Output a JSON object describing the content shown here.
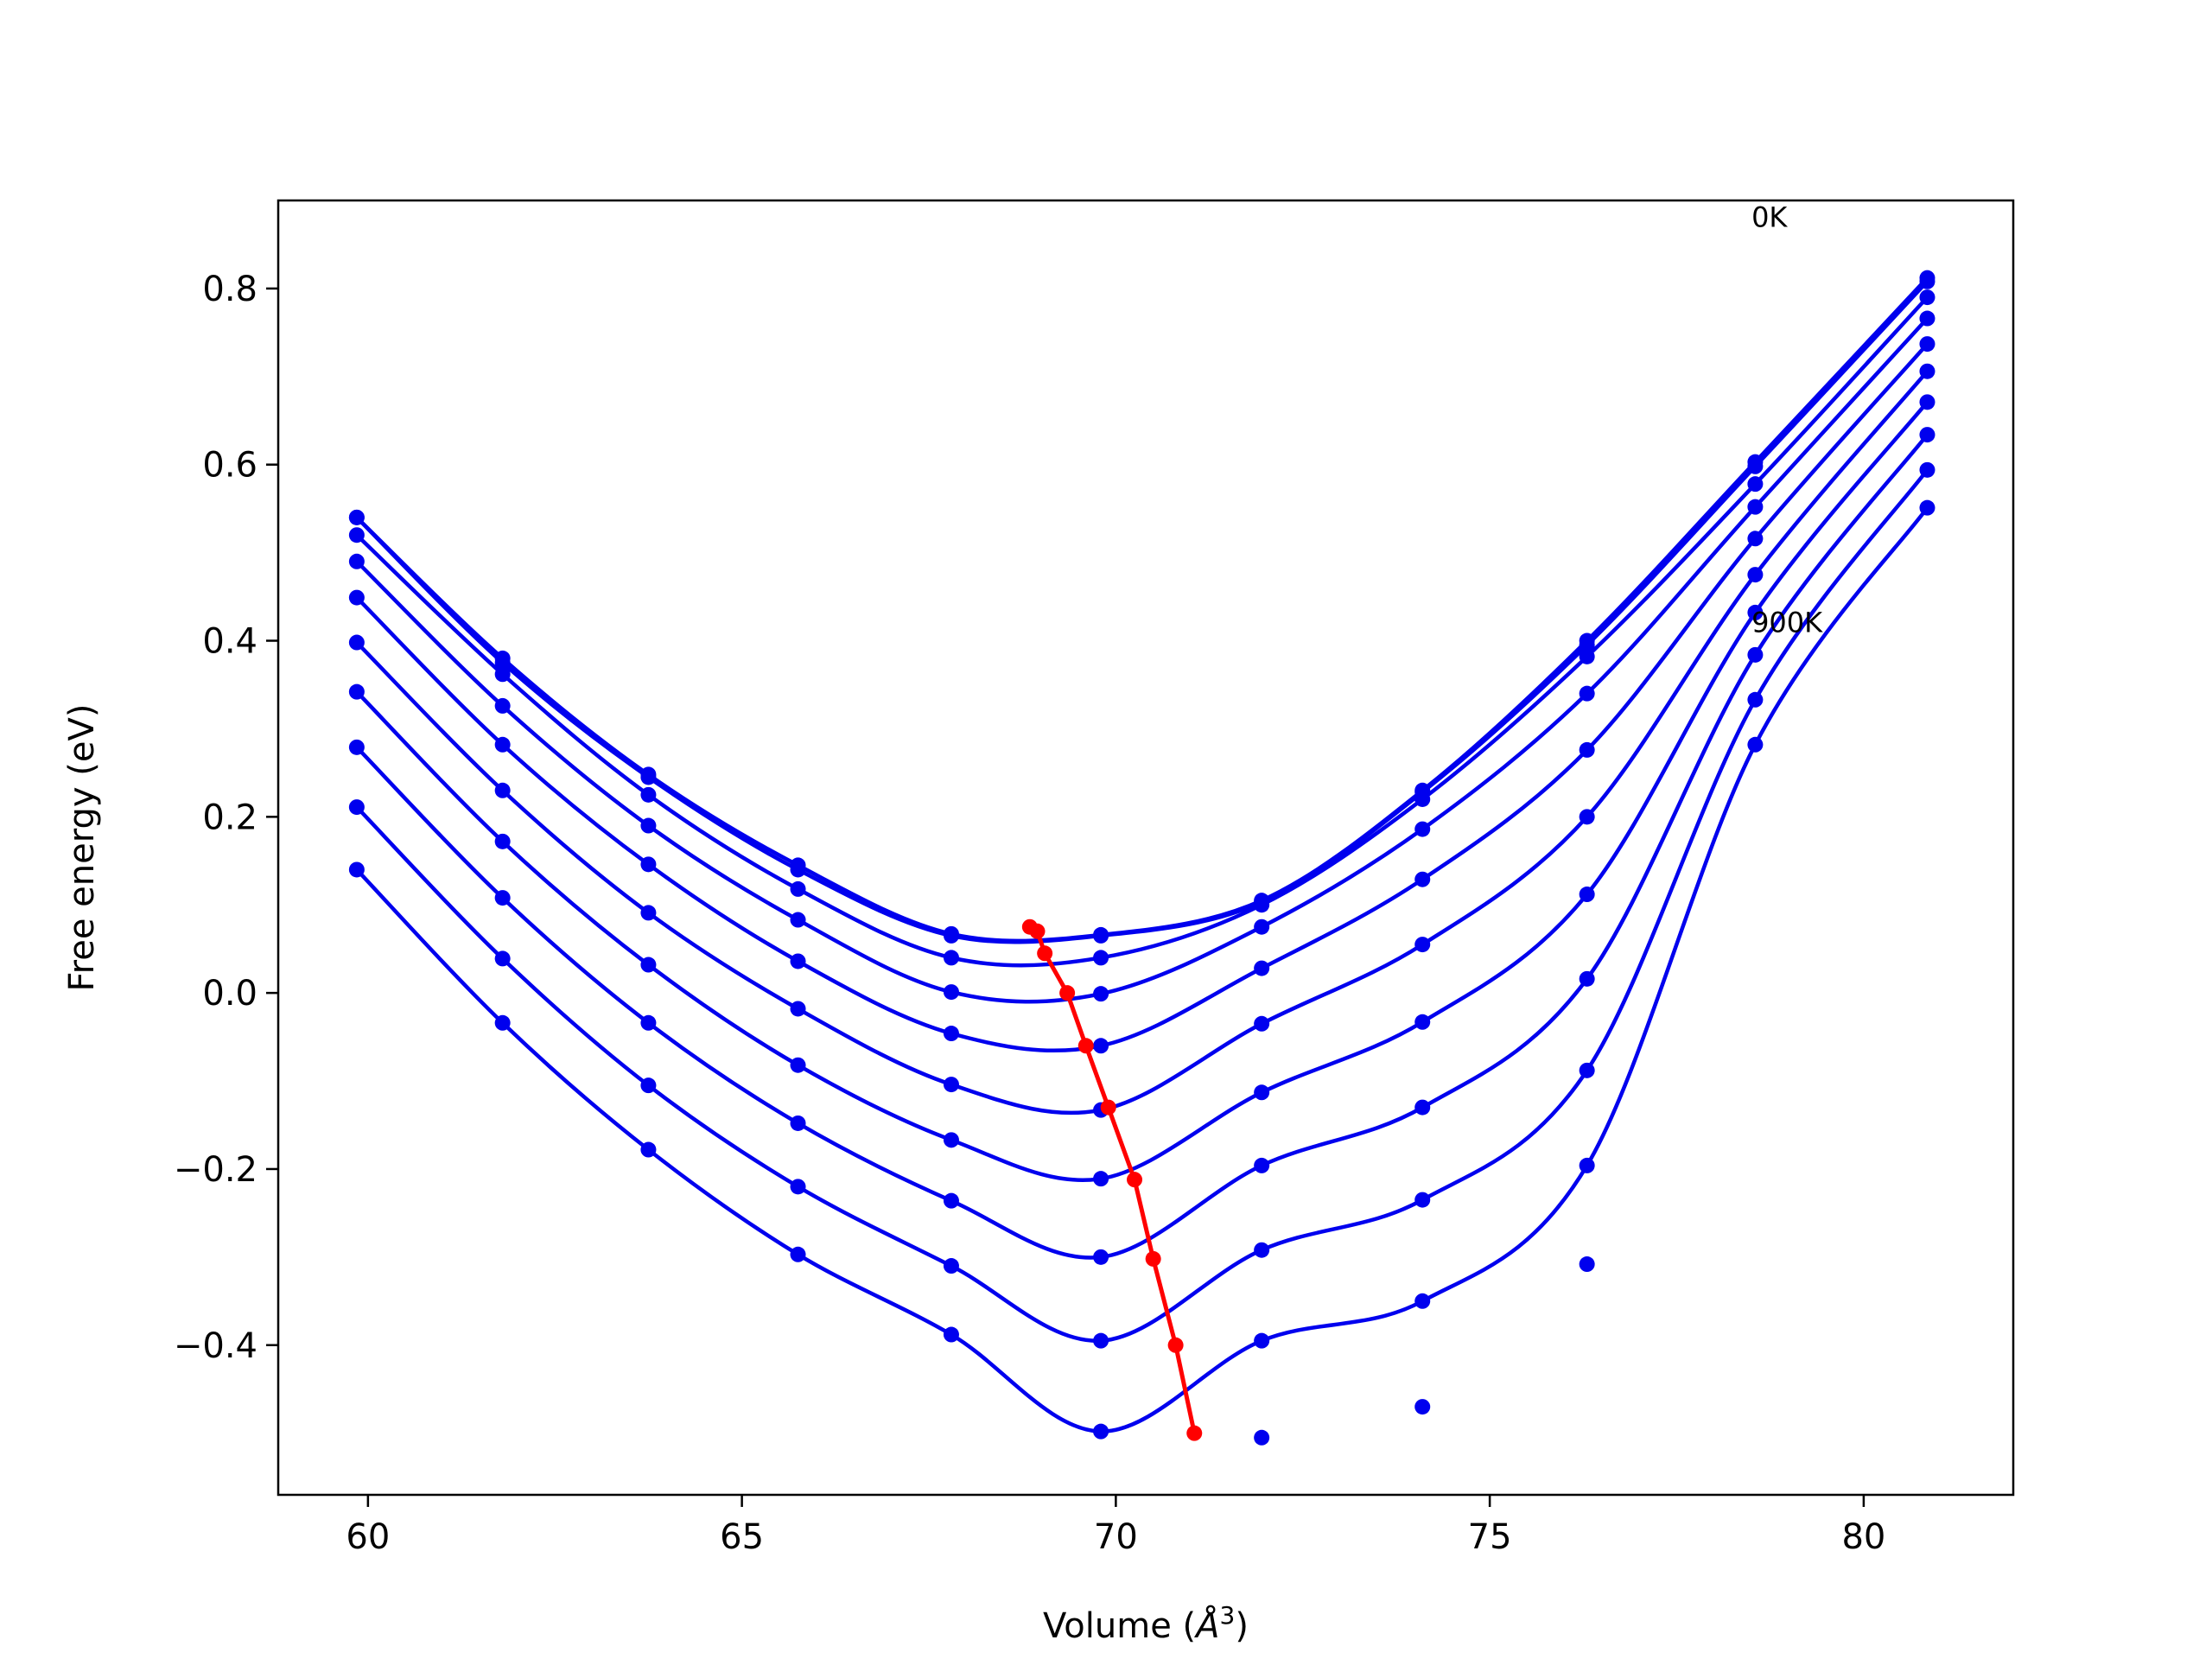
{
  "chart_data": {
    "type": "scatter",
    "xlabel": "Volume (",
    "xlabel_unit": "Å",
    "xlabel_exp": "3",
    "xlabel_close": ")",
    "ylabel": "Free energy (eV)",
    "xlim": [
      58.8,
      82.0
    ],
    "ylim": [
      -0.57,
      0.9
    ],
    "xticks": [
      60,
      65,
      70,
      75,
      80
    ],
    "yticks": [
      -0.4,
      -0.2,
      0.0,
      0.2,
      0.4,
      0.6,
      0.8
    ],
    "ytick_labels": [
      "−0.4",
      "−0.2",
      "0.0",
      "0.2",
      "0.4",
      "0.6",
      "0.8"
    ],
    "grid": false,
    "legend": "none",
    "annotations": [
      {
        "text": "0K",
        "x": 78.5,
        "y": 0.87
      },
      {
        "text": "900K",
        "x": 78.5,
        "y": 0.41
      }
    ],
    "colors": {
      "fit_curves": "#0000ee",
      "points": "#0000ee",
      "minimum_line": "#ff0000"
    },
    "volumes": [
      59.85,
      61.8,
      63.75,
      65.75,
      67.8,
      69.8,
      71.95,
      74.1,
      76.3,
      78.55,
      80.85
    ],
    "series": [
      {
        "values": [
          0.54,
          0.38,
          0.248,
          0.145,
          0.067,
          0.066,
          0.105,
          0.23,
          0.4,
          0.603,
          0.812
        ]
      },
      {
        "values": [
          0.54,
          0.375,
          0.245,
          0.14,
          0.065,
          0.065,
          0.103,
          0.228,
          0.395,
          0.598,
          0.808
        ]
      },
      {
        "values": [
          0.52,
          0.362,
          0.225,
          0.118,
          0.04,
          0.04,
          0.1,
          0.22,
          0.382,
          0.578,
          0.79
        ]
      },
      {
        "values": [
          0.49,
          0.326,
          0.19,
          0.083,
          0.001,
          -0.001,
          0.075,
          0.186,
          0.34,
          0.552,
          0.766
        ]
      },
      {
        "values": [
          0.449,
          0.282,
          0.146,
          0.036,
          -0.046,
          -0.06,
          0.028,
          0.129,
          0.276,
          0.516,
          0.737
        ]
      },
      {
        "values": [
          0.398,
          0.23,
          0.091,
          -0.018,
          -0.104,
          -0.133,
          -0.035,
          0.055,
          0.2,
          0.475,
          0.706
        ]
      },
      {
        "values": [
          0.342,
          0.172,
          0.032,
          -0.082,
          -0.167,
          -0.211,
          -0.113,
          -0.033,
          0.112,
          0.432,
          0.671
        ]
      },
      {
        "values": [
          0.279,
          0.108,
          -0.034,
          -0.148,
          -0.236,
          -0.3,
          -0.196,
          -0.13,
          0.016,
          0.384,
          0.634
        ]
      },
      {
        "values": [
          0.211,
          0.039,
          -0.105,
          -0.22,
          -0.31,
          -0.395,
          -0.292,
          -0.235,
          -0.088,
          0.333,
          0.594
        ]
      },
      {
        "values": [
          0.14,
          -0.034,
          -0.178,
          -0.297,
          -0.388,
          -0.498,
          -0.395,
          -0.35,
          -0.196,
          0.282,
          0.551
        ]
      },
      {
        "values": [
          null,
          null,
          null,
          null,
          null,
          null,
          -0.505,
          -0.47,
          -0.308,
          null,
          null
        ]
      }
    ],
    "minimum_line": {
      "x": [
        68.85,
        68.95,
        69.05,
        69.35,
        69.6,
        69.9,
        70.25,
        70.5,
        70.8,
        71.05
      ],
      "y": [
        0.075,
        0.07,
        0.045,
        0.0,
        -0.06,
        -0.13,
        -0.212,
        -0.302,
        -0.4,
        -0.5
      ]
    }
  }
}
